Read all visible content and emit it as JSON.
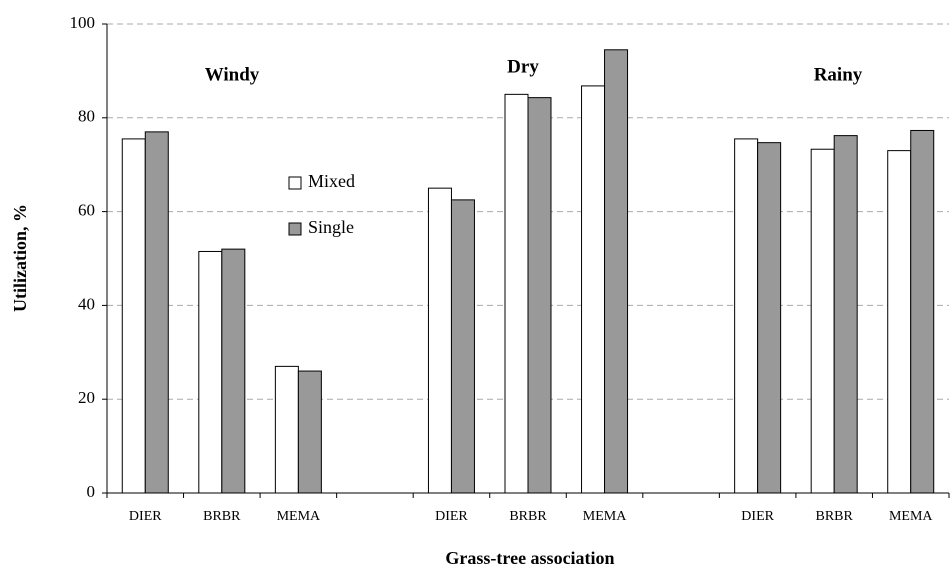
{
  "chart_data": {
    "type": "bar",
    "categories": [
      "DIER",
      "BRBR",
      "MEMA",
      null,
      "DIER",
      "BRBR",
      "MEMA",
      null,
      "DIER",
      "BRBR",
      "MEMA"
    ],
    "series": [
      {
        "name": "Mixed",
        "color": "#ffffff",
        "values": [
          75.5,
          51.5,
          27,
          null,
          65,
          85,
          86.8,
          null,
          75.5,
          73.3,
          73
        ]
      },
      {
        "name": "Single",
        "color": "#999999",
        "values": [
          77,
          52,
          26,
          null,
          62.5,
          84.3,
          94.5,
          null,
          74.7,
          76.2,
          77.3
        ]
      }
    ],
    "annotations": [
      "Windy",
      "Dry",
      "Rainy"
    ],
    "ylabel": "Utilization, %",
    "xlabel": "Grass-tree association",
    "ylim": [
      0,
      100
    ],
    "yticks": [
      0,
      20,
      40,
      60,
      80,
      100
    ],
    "grid": true,
    "legend": "upper left"
  }
}
